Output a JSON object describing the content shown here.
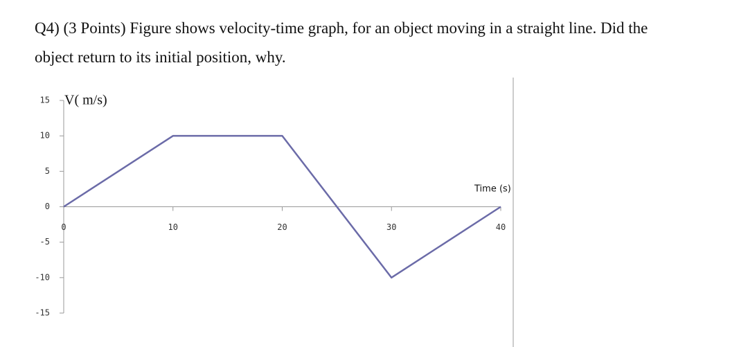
{
  "question": {
    "lines": [
      "Q4) (3 Points) Figure shows velocity-time graph, for an object moving in a straight line.  Did the",
      "object return to its initial position, why."
    ]
  },
  "chart_data": {
    "type": "line",
    "y_label": "V( m/s)",
    "x_label": "Time (s)",
    "x": [
      0,
      10,
      20,
      30,
      40
    ],
    "series": [
      {
        "color": "#6b6ba8",
        "values": [
          0,
          10,
          10,
          -10,
          0
        ]
      }
    ],
    "xlim": [
      0,
      40
    ],
    "ylim": [
      -15,
      15
    ],
    "xticks": [
      0,
      10,
      20,
      30,
      40
    ],
    "yticks": [
      -15,
      -10,
      -5,
      0,
      5,
      10,
      15
    ]
  }
}
